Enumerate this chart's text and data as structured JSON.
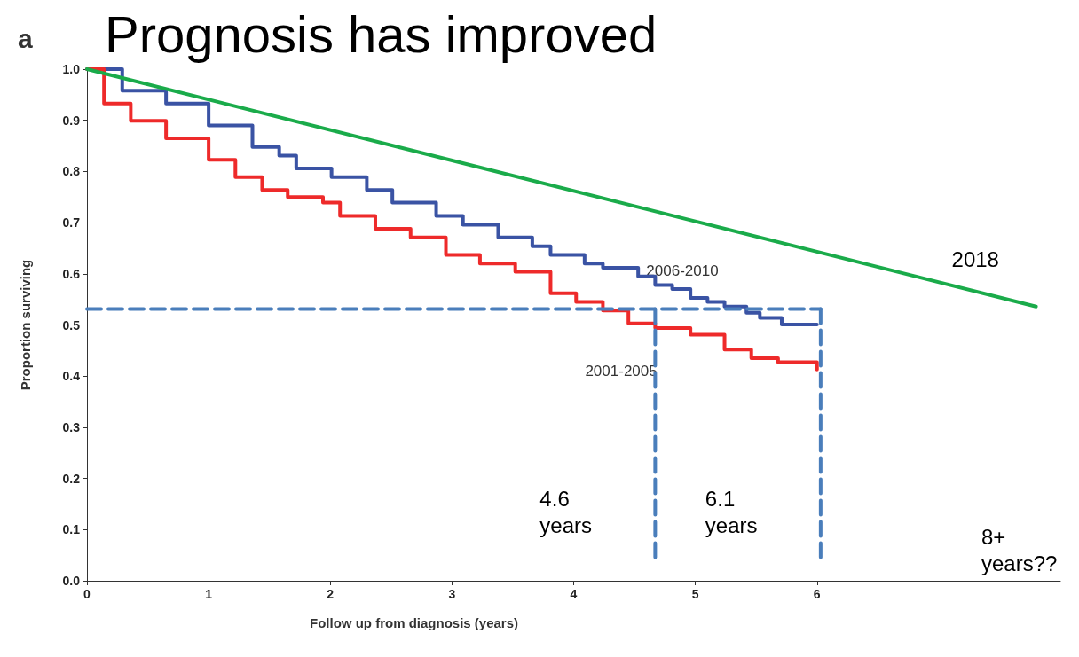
{
  "chart_data": {
    "type": "step",
    "title": "Prognosis has improved",
    "xlabel": "Follow up from diagnosis (years)",
    "ylabel": "Proportion surviving",
    "xlim": [
      0,
      8
    ],
    "xticks": [
      0,
      1,
      2,
      3,
      4,
      5,
      6
    ],
    "ylim": [
      0,
      1
    ],
    "yticks": [
      {
        "value": 0,
        "label": "0.0"
      },
      {
        "value": 0.1,
        "label": "0.1"
      },
      {
        "value": 0.2,
        "label": "0.2"
      },
      {
        "value": 0.3,
        "label": "0.3"
      },
      {
        "value": 0.4,
        "label": "0.4"
      },
      {
        "value": 0.5,
        "label": "0.5"
      },
      {
        "value": 0.6,
        "label": "0.6"
      },
      {
        "value": 0.7,
        "label": "0.7"
      },
      {
        "value": 0.8,
        "label": "0.8"
      },
      {
        "value": 0.9,
        "label": "0.9"
      },
      {
        "value": 1,
        "label": "1.0"
      }
    ],
    "grid": false,
    "legend": false,
    "marker": "none",
    "series": [
      {
        "name": "2006-2010",
        "color": "#3a53a4",
        "x": [
          0,
          0.29,
          0.65,
          1.0,
          1.36,
          1.58,
          1.72,
          2.01,
          2.3,
          2.51,
          2.87,
          3.09,
          3.38,
          3.66,
          3.81,
          4.09,
          4.24,
          4.53,
          4.67,
          4.81,
          4.96,
          5.1,
          5.24,
          5.42,
          5.53,
          5.71,
          6.0
        ],
        "values": [
          1.0,
          0.958,
          0.933,
          0.89,
          0.848,
          0.831,
          0.806,
          0.789,
          0.764,
          0.739,
          0.713,
          0.696,
          0.671,
          0.654,
          0.637,
          0.62,
          0.612,
          0.595,
          0.578,
          0.57,
          0.553,
          0.545,
          0.536,
          0.524,
          0.514,
          0.501,
          0.501
        ]
      },
      {
        "name": "2001-2005",
        "color": "#ee2a2a",
        "x": [
          0,
          0.14,
          0.36,
          0.65,
          1.0,
          1.22,
          1.44,
          1.65,
          1.94,
          2.08,
          2.37,
          2.66,
          2.95,
          3.23,
          3.52,
          3.81,
          4.02,
          4.24,
          4.45,
          4.67,
          4.96,
          5.24,
          5.46,
          5.68,
          6.0
        ],
        "values": [
          1.0,
          0.933,
          0.899,
          0.865,
          0.823,
          0.789,
          0.764,
          0.75,
          0.739,
          0.713,
          0.688,
          0.671,
          0.637,
          0.62,
          0.604,
          0.562,
          0.545,
          0.528,
          0.503,
          0.494,
          0.481,
          0.452,
          0.435,
          0.427,
          0.413
        ]
      },
      {
        "name": "2018",
        "type": "line",
        "color": "#1aab4a",
        "x": [
          0,
          7.8
        ],
        "values": [
          1.0,
          0.536
        ]
      },
      {
        "type": "line",
        "line_style": "dashed",
        "color": "#4a7ebb",
        "x": [
          0,
          6.03
        ],
        "values": [
          0.531,
          0.531
        ]
      },
      {
        "type": "line",
        "line_style": "dashed",
        "color": "#4a7ebb",
        "x": [
          4.67,
          4.67
        ],
        "values": [
          0.531,
          0.039
        ]
      },
      {
        "type": "line",
        "line_style": "dashed",
        "color": "#4a7ebb",
        "x": [
          6.03,
          6.03
        ],
        "values": [
          0.531,
          0.039
        ]
      }
    ],
    "annotations": [
      "a",
      {
        "text": "4.6\nyears",
        "x": 4.67,
        "y": 0.1
      },
      {
        "text": "6.1\nyears",
        "x": 6.03,
        "y": 0.1
      },
      "8+\nyears??"
    ]
  }
}
